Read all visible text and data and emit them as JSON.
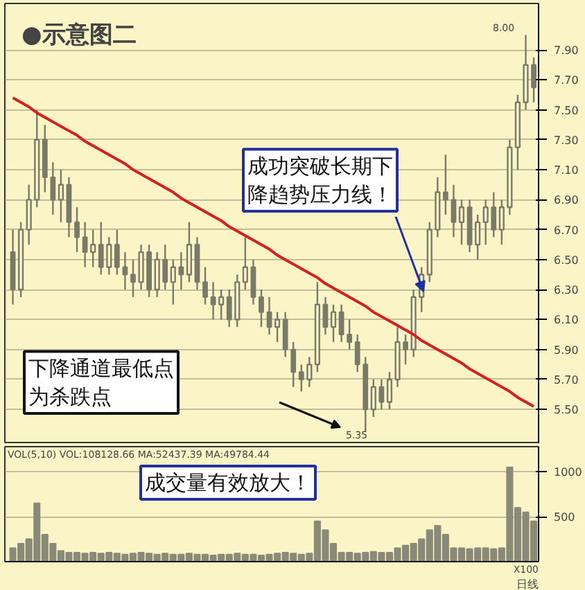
{
  "chart_data": [
    {
      "type": "candlestick",
      "title": "●示意图二",
      "ylim": [
        5.27,
        8.21
      ],
      "tick_labels": "y",
      "grid": "y",
      "categories": [
        null,
        null,
        null,
        null,
        null,
        null,
        null,
        null,
        null,
        null,
        null,
        null,
        null,
        null,
        null,
        null,
        null,
        null,
        null,
        null,
        null,
        null,
        null,
        null,
        null,
        null,
        null,
        null,
        null,
        null,
        null,
        null,
        null,
        null,
        null,
        null,
        null,
        null,
        null,
        null,
        null,
        null,
        null,
        null,
        null,
        null,
        null,
        null,
        null,
        null,
        null,
        null,
        null,
        null,
        null,
        null,
        null,
        null,
        null,
        null,
        null,
        null,
        null,
        null,
        null,
        null
      ],
      "yticks": [
        {
          "value": 5.5,
          "label": "5.50"
        },
        {
          "value": 5.7,
          "label": "5.70"
        },
        {
          "value": 5.9,
          "label": "5.90"
        },
        {
          "value": 6.1,
          "label": "6.10"
        },
        {
          "value": 6.3,
          "label": "6.30"
        },
        {
          "value": 6.5,
          "label": "6.50"
        },
        {
          "value": 6.7,
          "label": "6.70"
        },
        {
          "value": 6.9,
          "label": "6.90"
        },
        {
          "value": 7.1,
          "label": "7.10"
        },
        {
          "value": 7.3,
          "label": "7.30"
        },
        {
          "value": 7.5,
          "label": "7.50"
        },
        {
          "value": 7.7,
          "label": "7.70"
        },
        {
          "value": 7.9,
          "label": "7.90"
        }
      ],
      "series": [
        {
          "type": "candlestick",
          "color": "#7a7a68",
          "ohlc": [
            [
              6.55,
              6.7,
              6.2,
              6.3
            ],
            [
              6.3,
              6.75,
              6.25,
              6.7
            ],
            [
              6.7,
              7.0,
              6.6,
              6.9
            ],
            [
              6.9,
              7.5,
              6.85,
              7.3
            ],
            [
              7.3,
              7.4,
              6.95,
              7.05
            ],
            [
              7.05,
              7.15,
              6.8,
              6.9
            ],
            [
              6.9,
              7.1,
              6.75,
              7.0
            ],
            [
              7.0,
              7.05,
              6.65,
              6.75
            ],
            [
              6.75,
              6.85,
              6.55,
              6.65
            ],
            [
              6.65,
              6.75,
              6.45,
              6.55
            ],
            [
              6.55,
              6.7,
              6.45,
              6.6
            ],
            [
              6.6,
              6.75,
              6.4,
              6.45
            ],
            [
              6.45,
              6.65,
              6.4,
              6.6
            ],
            [
              6.6,
              6.7,
              6.4,
              6.45
            ],
            [
              6.45,
              6.55,
              6.3,
              6.4
            ],
            [
              6.4,
              6.5,
              6.25,
              6.35
            ],
            [
              6.35,
              6.6,
              6.3,
              6.55
            ],
            [
              6.55,
              6.6,
              6.25,
              6.3
            ],
            [
              6.3,
              6.55,
              6.25,
              6.5
            ],
            [
              6.5,
              6.6,
              6.3,
              6.35
            ],
            [
              6.35,
              6.5,
              6.2,
              6.45
            ],
            [
              6.45,
              6.55,
              6.3,
              6.4
            ],
            [
              6.4,
              6.75,
              6.35,
              6.6
            ],
            [
              6.6,
              6.65,
              6.3,
              6.35
            ],
            [
              6.35,
              6.45,
              6.2,
              6.25
            ],
            [
              6.25,
              6.35,
              6.1,
              6.2
            ],
            [
              6.2,
              6.3,
              6.1,
              6.25
            ],
            [
              6.25,
              6.3,
              6.05,
              6.1
            ],
            [
              6.1,
              6.4,
              6.05,
              6.35
            ],
            [
              6.35,
              6.65,
              6.3,
              6.45
            ],
            [
              6.45,
              6.5,
              6.2,
              6.25
            ],
            [
              6.25,
              6.3,
              6.05,
              6.15
            ],
            [
              6.15,
              6.25,
              6.0,
              6.05
            ],
            [
              6.05,
              6.15,
              5.95,
              6.1
            ],
            [
              6.1,
              6.15,
              5.85,
              5.9
            ],
            [
              5.9,
              5.95,
              5.65,
              5.75
            ],
            [
              5.75,
              5.8,
              5.62,
              5.7
            ],
            [
              5.7,
              5.85,
              5.65,
              5.8
            ],
            [
              5.8,
              6.35,
              5.75,
              6.2
            ],
            [
              6.2,
              6.25,
              6.0,
              6.05
            ],
            [
              6.05,
              6.2,
              5.95,
              6.15
            ],
            [
              6.15,
              6.2,
              5.95,
              6.0
            ],
            [
              6.0,
              6.1,
              5.9,
              5.95
            ],
            [
              5.95,
              6.0,
              5.75,
              5.8
            ],
            [
              5.8,
              5.85,
              5.35,
              5.5
            ],
            [
              5.5,
              5.7,
              5.45,
              5.65
            ],
            [
              5.65,
              5.7,
              5.5,
              5.55
            ],
            [
              5.55,
              5.75,
              5.5,
              5.7
            ],
            [
              5.7,
              6.05,
              5.65,
              5.95
            ],
            [
              5.95,
              6.0,
              5.8,
              5.9
            ],
            [
              5.9,
              6.3,
              5.85,
              6.25
            ],
            [
              6.25,
              6.45,
              6.15,
              6.4
            ],
            [
              6.4,
              6.75,
              6.35,
              6.7
            ],
            [
              6.7,
              7.05,
              6.65,
              6.95
            ],
            [
              6.95,
              7.2,
              6.8,
              6.9
            ],
            [
              6.9,
              7.0,
              6.65,
              6.75
            ],
            [
              6.75,
              6.9,
              6.6,
              6.85
            ],
            [
              6.85,
              6.9,
              6.55,
              6.6
            ],
            [
              6.6,
              6.8,
              6.5,
              6.75
            ],
            [
              6.75,
              6.9,
              6.6,
              6.85
            ],
            [
              6.85,
              6.95,
              6.65,
              6.7
            ],
            [
              6.7,
              6.9,
              6.6,
              6.85
            ],
            [
              6.85,
              7.3,
              6.8,
              7.25
            ],
            [
              7.25,
              7.6,
              7.1,
              7.55
            ],
            [
              7.55,
              8.0,
              7.5,
              7.8
            ],
            [
              7.8,
              7.85,
              7.55,
              7.65
            ]
          ]
        },
        {
          "type": "line",
          "color": "#d42020",
          "values": [
            7.58,
            7.55,
            7.52,
            7.48,
            7.45,
            7.42,
            7.39,
            7.36,
            7.33,
            7.29,
            7.26,
            7.23,
            7.2,
            7.17,
            7.14,
            7.1,
            7.07,
            7.04,
            7.01,
            6.98,
            6.95,
            6.91,
            6.88,
            6.85,
            6.82,
            6.79,
            6.76,
            6.72,
            6.69,
            6.66,
            6.63,
            6.6,
            6.57,
            6.53,
            6.5,
            6.47,
            6.44,
            6.41,
            6.38,
            6.34,
            6.31,
            6.28,
            6.25,
            6.22,
            6.19,
            6.15,
            6.12,
            6.09,
            6.06,
            6.03,
            6.0,
            5.96,
            5.93,
            5.9,
            5.87,
            5.84,
            5.81,
            5.77,
            5.74,
            5.71,
            5.68,
            5.65,
            5.62,
            5.58,
            5.55,
            5.52
          ]
        }
      ],
      "annotations": [
        "8.00",
        "5.35",
        "成功突破长期下降趋势压力线！",
        "下降通道最低点为杀跌点"
      ]
    },
    {
      "type": "bar",
      "xlabel": "日线",
      "ylim": [
        0,
        1280
      ],
      "yticks": [
        500,
        1000
      ],
      "tick_labels": "y",
      "grid": "y",
      "categories": [
        null,
        null,
        null,
        null,
        null,
        null,
        null,
        null,
        null,
        null,
        null,
        null,
        null,
        null,
        null,
        null,
        null,
        null,
        null,
        null,
        null,
        null,
        null,
        null,
        null,
        null,
        null,
        null,
        null,
        null,
        null,
        null,
        null,
        null,
        null,
        null,
        null,
        null,
        null,
        null,
        null,
        null,
        null,
        null,
        null,
        null,
        null,
        null,
        null,
        null,
        null,
        null,
        null,
        null,
        null,
        null,
        null,
        null,
        null,
        null,
        null,
        null,
        null,
        null,
        null,
        null
      ],
      "series": [
        {
          "color": "#8a8a78",
          "values": [
            150,
            200,
            250,
            650,
            300,
            200,
            120,
            100,
            100,
            90,
            100,
            90,
            100,
            90,
            80,
            90,
            100,
            90,
            80,
            90,
            80,
            80,
            90,
            80,
            80,
            70,
            80,
            80,
            90,
            80,
            80,
            70,
            80,
            90,
            100,
            90,
            80,
            90,
            450,
            350,
            200,
            100,
            100,
            90,
            100,
            110,
            100,
            100,
            150,
            180,
            200,
            250,
            350,
            400,
            300,
            150,
            150,
            140,
            150,
            150,
            140,
            150,
            1050,
            600,
            550,
            450
          ]
        }
      ],
      "annotations": [
        "VOL(5,10)  VOL:108128.66  MA:52437.39  MA:49784.44",
        "成交量有效放大！",
        "X100"
      ]
    }
  ]
}
